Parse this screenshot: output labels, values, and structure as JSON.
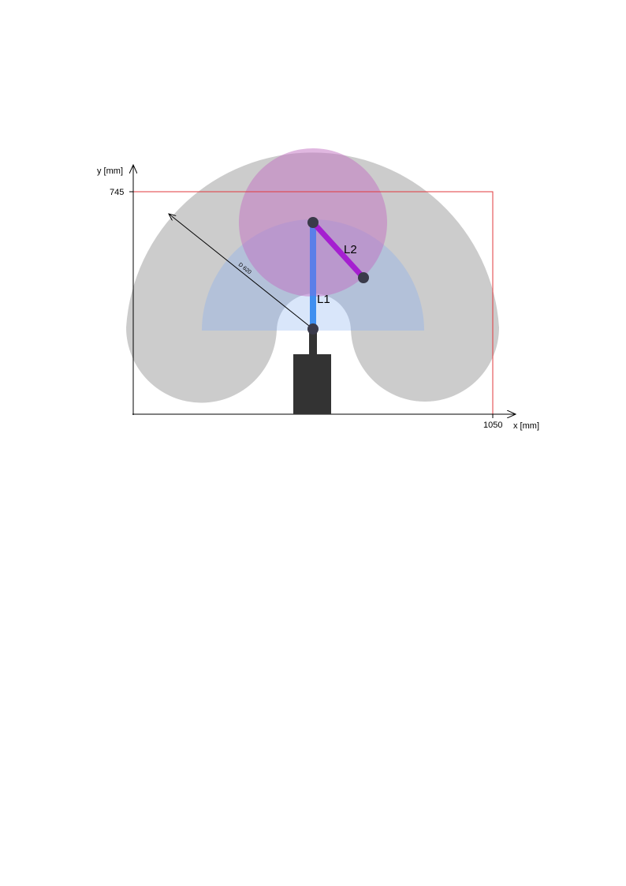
{
  "axes": {
    "x_label": "x [mm]",
    "y_label": "y [mm]",
    "x_max_tick": "1050",
    "y_max_tick": "745"
  },
  "links": {
    "l1_label": "L1",
    "l2_label": "L2"
  },
  "dimension": {
    "reach_label": "D 620"
  },
  "colors": {
    "outer_workspace": "#cccccc",
    "inner_workspace": "#b3c1d9",
    "core_workspace": "#d9e6fa",
    "l2_workspace": "#c998c9",
    "boundary": "#e0393e",
    "link1": "#5b7fe8",
    "link2": "#a51fd0",
    "joint": "#3a3a4a",
    "base": "#333333"
  }
}
